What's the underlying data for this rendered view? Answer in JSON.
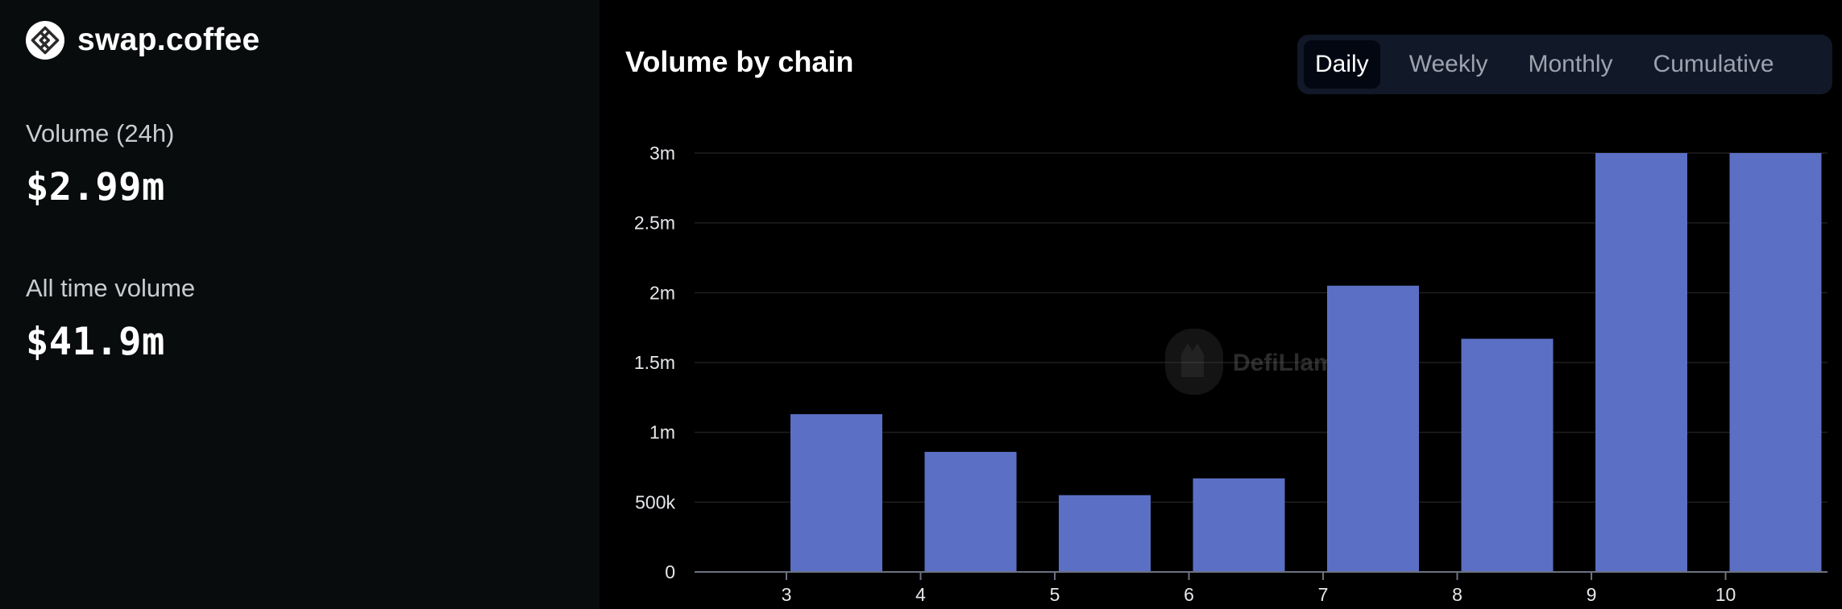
{
  "brand": {
    "name": "swap.coffee",
    "logo_icon": "swap-coffee-logo-icon"
  },
  "stats": {
    "volume_24h": {
      "label": "Volume (24h)",
      "value": "$2.99m"
    },
    "all_time": {
      "label": "All time volume",
      "value": "$41.9m"
    }
  },
  "chart_panel": {
    "title": "Volume by chain",
    "tabs": [
      {
        "label": "Daily",
        "active": true
      },
      {
        "label": "Weekly",
        "active": false
      },
      {
        "label": "Monthly",
        "active": false
      },
      {
        "label": "Cumulative",
        "active": false
      }
    ],
    "watermark": "DefiLlama"
  },
  "colors": {
    "bar": "#5b6fc4",
    "grid": "#1f1f1f",
    "axis": "#6b7280",
    "left_panel_bg": "#090c0d",
    "chart_bg": "#000000"
  },
  "chart_data": {
    "type": "bar",
    "title": "Volume by chain",
    "xlabel": "",
    "ylabel": "",
    "categories": [
      "3",
      "4",
      "5",
      "6",
      "7",
      "8",
      "9",
      "10"
    ],
    "values": [
      1130000,
      860000,
      550000,
      670000,
      2050000,
      1670000,
      3000000,
      3000000
    ],
    "y_ticks": [
      {
        "value": 0,
        "label": "0"
      },
      {
        "value": 500000,
        "label": "500k"
      },
      {
        "value": 1000000,
        "label": "1m"
      },
      {
        "value": 1500000,
        "label": "1.5m"
      },
      {
        "value": 2000000,
        "label": "2m"
      },
      {
        "value": 2500000,
        "label": "2.5m"
      },
      {
        "value": 3000000,
        "label": "3m"
      }
    ],
    "ylim": [
      0,
      3000000
    ],
    "grid": true,
    "legend": "none"
  }
}
